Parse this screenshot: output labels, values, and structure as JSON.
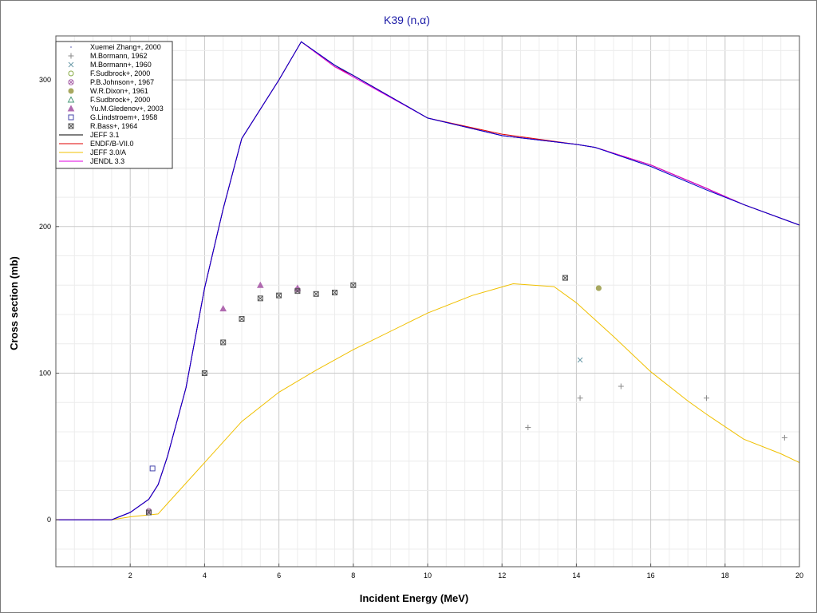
{
  "chart_data": {
    "type": "scatter",
    "title": "K39 (n,α)",
    "xlabel": "Incident Energy (MeV)",
    "ylabel": "Cross section (mb)",
    "xlim": [
      0,
      20
    ],
    "ylim": [
      -32,
      330
    ],
    "x_ticks": [
      2,
      4,
      6,
      8,
      10,
      12,
      14,
      16,
      18,
      20
    ],
    "y_ticks": [
      0,
      100,
      200,
      300
    ],
    "grid": true,
    "legend_position": "top-left",
    "series": [
      {
        "name": "Xuemei Zhang+, 2000",
        "kind": "points",
        "marker": "dot",
        "color": "#9a9ad0",
        "points": []
      },
      {
        "name": "M.Bormann, 1962",
        "kind": "points",
        "marker": "plus",
        "color": "#8a8a8a",
        "points": [
          [
            12.7,
            63
          ],
          [
            14.1,
            83
          ],
          [
            15.2,
            91
          ],
          [
            17.5,
            83
          ],
          [
            19.6,
            56
          ]
        ]
      },
      {
        "name": "M.Bormann+, 1960",
        "kind": "points",
        "marker": "cross",
        "color": "#6a9aa8",
        "points": [
          [
            14.1,
            109
          ]
        ]
      },
      {
        "name": "F.Sudbrock+, 2000",
        "kind": "points",
        "marker": "circle",
        "color": "#88aa44",
        "points": [
          [
            14.6,
            158
          ]
        ]
      },
      {
        "name": "P.B.Johnson+, 1967",
        "kind": "points",
        "marker": "circle-x",
        "color": "#aa66aa",
        "points": [
          [
            2.5,
            6
          ],
          [
            6.5,
            157
          ]
        ]
      },
      {
        "name": "W.R.Dixon+, 1961",
        "kind": "points",
        "marker": "filled-circle",
        "color": "#a8a860",
        "points": [
          [
            14.6,
            158
          ]
        ]
      },
      {
        "name": "F.Sudbrock+, 2000",
        "kind": "points",
        "marker": "triangle",
        "color": "#4a9a7a",
        "points": []
      },
      {
        "name": "Yu.M.Gledenov+, 2003",
        "kind": "points",
        "marker": "filled-triangle",
        "color": "#b06ab0",
        "points": [
          [
            4.5,
            144
          ],
          [
            5.5,
            160
          ],
          [
            6.5,
            158
          ]
        ]
      },
      {
        "name": "G.Lindstroem+, 1958",
        "kind": "points",
        "marker": "square",
        "color": "#4444aa",
        "points": [
          [
            2.6,
            35
          ]
        ]
      },
      {
        "name": "R.Bass+, 1964",
        "kind": "points",
        "marker": "square-x",
        "color": "#555555",
        "points": [
          [
            2.5,
            5
          ],
          [
            4.0,
            100
          ],
          [
            4.5,
            121
          ],
          [
            5.0,
            137
          ],
          [
            5.5,
            151
          ],
          [
            6.0,
            153
          ],
          [
            6.5,
            156
          ],
          [
            7.0,
            154
          ],
          [
            7.5,
            155
          ],
          [
            8.0,
            160
          ],
          [
            13.7,
            165
          ]
        ]
      },
      {
        "name": "JEFF 3.1",
        "kind": "line",
        "color": "#000000",
        "points": [
          [
            0,
            0
          ],
          [
            1.5,
            0
          ],
          [
            2.0,
            5
          ],
          [
            2.5,
            14
          ],
          [
            2.75,
            24
          ],
          [
            3.0,
            43
          ],
          [
            3.5,
            90
          ],
          [
            4.0,
            158
          ],
          [
            4.5,
            212
          ],
          [
            5.0,
            260
          ],
          [
            6.0,
            300
          ],
          [
            6.6,
            326
          ],
          [
            7.5,
            310
          ],
          [
            8.0,
            303
          ],
          [
            10.0,
            274
          ],
          [
            12.0,
            262
          ],
          [
            14.0,
            256
          ],
          [
            14.5,
            254
          ],
          [
            16.0,
            242
          ],
          [
            17.5,
            226
          ],
          [
            18.5,
            215
          ],
          [
            20.0,
            201
          ]
        ]
      },
      {
        "name": "ENDF/B-VII.0",
        "kind": "line",
        "color": "#e00000",
        "points": [
          [
            0,
            0
          ],
          [
            1.5,
            0
          ],
          [
            2.0,
            5
          ],
          [
            2.5,
            14
          ],
          [
            2.75,
            24
          ],
          [
            3.0,
            43
          ],
          [
            3.5,
            90
          ],
          [
            4.0,
            158
          ],
          [
            4.5,
            212
          ],
          [
            5.0,
            260
          ],
          [
            6.0,
            300
          ],
          [
            6.6,
            326
          ],
          [
            7.5,
            309
          ],
          [
            8.0,
            303
          ],
          [
            10.0,
            274
          ],
          [
            12.0,
            263
          ],
          [
            14.0,
            256
          ],
          [
            14.5,
            254
          ],
          [
            16.0,
            242
          ],
          [
            17.5,
            226
          ],
          [
            18.5,
            215
          ],
          [
            20.0,
            201
          ]
        ]
      },
      {
        "name": "JEFF 3.0/A",
        "kind": "line",
        "color": "#f0c000",
        "points": [
          [
            0,
            0
          ],
          [
            1.5,
            0
          ],
          [
            2.0,
            2
          ],
          [
            2.75,
            4
          ],
          [
            3.0,
            11
          ],
          [
            4.0,
            39
          ],
          [
            5.0,
            67
          ],
          [
            6.0,
            87
          ],
          [
            7.0,
            102
          ],
          [
            8.0,
            116
          ],
          [
            10.0,
            141
          ],
          [
            11.2,
            153
          ],
          [
            12.3,
            161
          ],
          [
            13.4,
            159
          ],
          [
            14.0,
            148
          ],
          [
            15.0,
            125
          ],
          [
            16.0,
            101
          ],
          [
            17.0,
            81
          ],
          [
            17.5,
            72
          ],
          [
            18.5,
            55
          ],
          [
            19.5,
            45
          ],
          [
            20.0,
            39
          ]
        ]
      },
      {
        "name": "JENDL 3.3",
        "kind": "line",
        "color": "#e000e0",
        "points": [
          [
            0,
            0
          ],
          [
            1.5,
            0
          ],
          [
            2.0,
            5
          ],
          [
            2.5,
            14
          ],
          [
            2.75,
            24
          ],
          [
            3.0,
            43
          ],
          [
            3.5,
            90
          ],
          [
            4.0,
            158
          ],
          [
            4.5,
            212
          ],
          [
            5.0,
            260
          ],
          [
            6.0,
            300
          ],
          [
            6.6,
            326
          ],
          [
            7.5,
            309
          ],
          [
            8.0,
            302
          ],
          [
            10.0,
            274
          ],
          [
            12.0,
            262
          ],
          [
            14.0,
            256
          ],
          [
            14.5,
            254
          ],
          [
            16.0,
            242
          ],
          [
            17.5,
            226
          ],
          [
            18.5,
            215
          ],
          [
            20.0,
            201
          ]
        ]
      },
      {
        "name": "",
        "kind": "line",
        "color": "#0000cc",
        "points": [
          [
            0,
            0
          ],
          [
            1.5,
            0
          ],
          [
            2.0,
            5
          ],
          [
            2.5,
            14
          ],
          [
            2.75,
            24
          ],
          [
            3.0,
            43
          ],
          [
            3.5,
            90
          ],
          [
            4.0,
            158
          ],
          [
            4.5,
            212
          ],
          [
            5.0,
            260
          ],
          [
            6.0,
            300
          ],
          [
            6.6,
            326
          ],
          [
            7.5,
            310
          ],
          [
            8.0,
            303
          ],
          [
            10.0,
            274
          ],
          [
            12.0,
            262
          ],
          [
            14.0,
            256
          ],
          [
            14.5,
            254
          ],
          [
            16.0,
            241
          ],
          [
            17.5,
            225
          ],
          [
            18.5,
            215
          ],
          [
            20.0,
            201
          ]
        ]
      }
    ]
  }
}
